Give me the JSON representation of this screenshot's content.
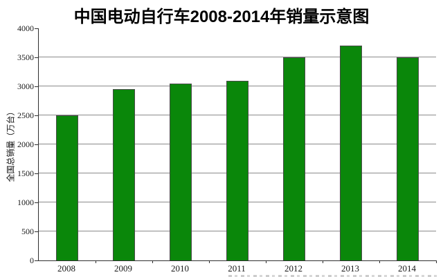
{
  "title": "中国电动自行车2008-2014年销量示意图",
  "chart_data": {
    "type": "bar",
    "title": "中国电动自行车2008-2014年销量示意图",
    "categories": [
      "2008",
      "2009",
      "2010",
      "2011",
      "2012",
      "2013",
      "2014"
    ],
    "values": [
      2500,
      2950,
      3050,
      3100,
      3500,
      3700,
      3500
    ],
    "xlabel": "",
    "ylabel": "全国总销量（万台）",
    "ylim": [
      0,
      4000
    ],
    "ytick_step": 500,
    "ytick_labels": [
      "0",
      "500",
      "1000",
      "1500",
      "2000",
      "2500",
      "3000",
      "3500",
      "4000"
    ],
    "grid": "horizontal-only",
    "legend": "none",
    "colors": {
      "bar_fill": "#0a870a",
      "bar_border": "#4a4a4a",
      "gridline": "#8a8a8a",
      "axis": "#2e2e2e",
      "title_text": "#000000",
      "tick_text": "#1a1a1a",
      "background": "#ffffff"
    }
  }
}
